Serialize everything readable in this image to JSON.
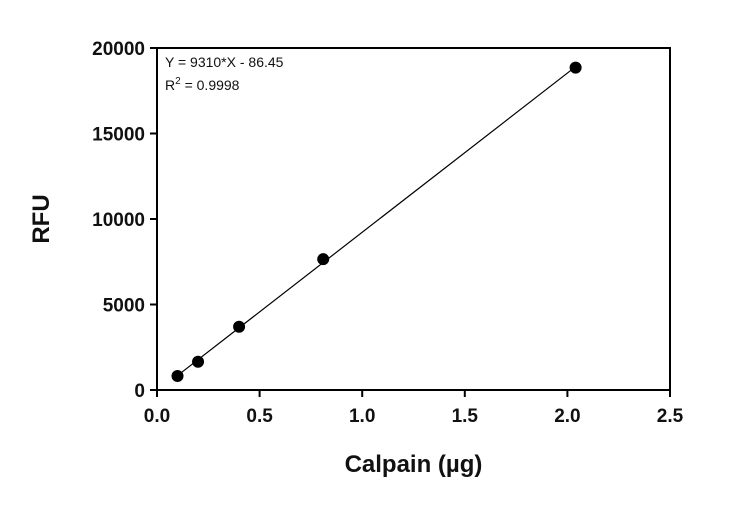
{
  "chart_data": {
    "type": "scatter",
    "xlabel": "Calpain (µg)",
    "ylabel": "RFU",
    "xlim": [
      0,
      2.5
    ],
    "ylim": [
      0,
      20000
    ],
    "x_ticks": [
      "0.0",
      "0.5",
      "1.0",
      "1.5",
      "2.0",
      "2.5"
    ],
    "y_ticks": [
      "0",
      "5000",
      "10000",
      "15000",
      "20000"
    ],
    "grid": false,
    "series": [
      {
        "x": [
          0.1,
          0.2,
          0.4,
          0.81,
          2.04
        ],
        "y": [
          820,
          1650,
          3700,
          7650,
          18850
        ]
      }
    ],
    "fit_line": {
      "slope": 9310,
      "intercept": -86.45,
      "x_range": [
        0.1,
        2.04
      ]
    },
    "annotations": {
      "equation": "Y = 9310*X - 86.45",
      "r2_prefix": "R",
      "r2_sup": "2",
      "r2_value": " = 0.9998"
    },
    "colors": {
      "marker": "#000000",
      "line": "#000000",
      "axis": "#000000"
    }
  }
}
